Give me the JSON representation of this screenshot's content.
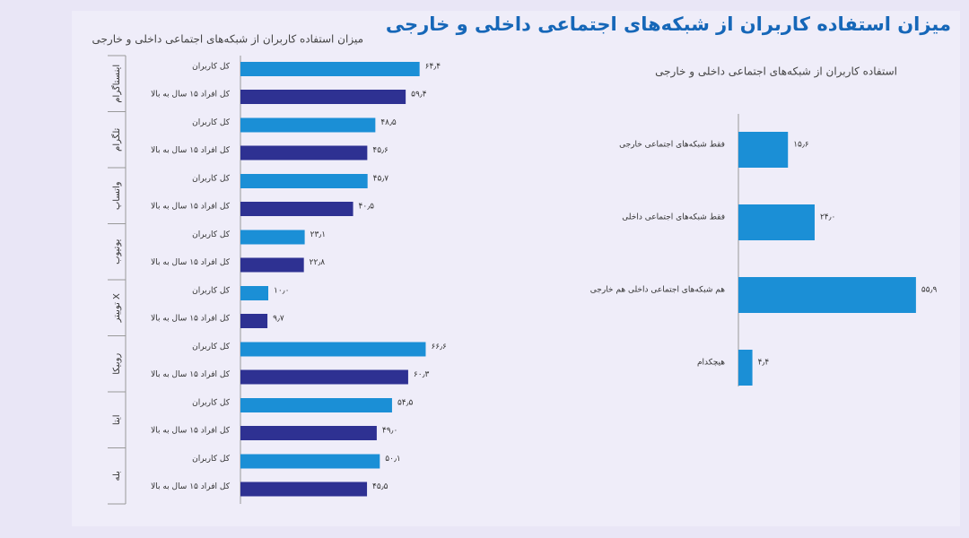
{
  "header": {
    "title": "میزان استفاده کاربران از شبکه‌های اجتماعی داخلی و خارجی"
  },
  "chart_data": [
    {
      "type": "bar",
      "orientation": "horizontal",
      "title": "میزان استفاده کاربران از شبکه‌های اجتماعی داخلی و خارجی",
      "categories": [
        "اینستاگرام",
        "تلگرام",
        "واتساپ",
        "یوتیوب",
        "توییتر X",
        "روبیکا",
        "ایتا",
        "بله"
      ],
      "series": [
        {
          "name": "کل کاربران",
          "color": "#1b8fd6",
          "values": [
            64.4,
            48.5,
            45.7,
            23.1,
            10.0,
            66.6,
            54.5,
            50.1
          ],
          "value_labels": [
            "۶۴٫۴",
            "۴۸٫۵",
            "۴۵٫۷",
            "۲۳٫۱",
            "۱۰٫۰",
            "۶۶٫۶",
            "۵۴٫۵",
            "۵۰٫۱"
          ]
        },
        {
          "name": "کل افراد ۱۵ سال به بالا",
          "color": "#2e3192",
          "values": [
            59.4,
            45.6,
            40.5,
            22.8,
            9.7,
            60.3,
            49.0,
            45.5
          ],
          "value_labels": [
            "۵۹٫۴",
            "۴۵٫۶",
            "۴۰٫۵",
            "۲۲٫۸",
            "۹٫۷",
            "۶۰٫۳",
            "۴۹٫۰",
            "۴۵٫۵"
          ]
        }
      ]
    },
    {
      "type": "bar",
      "orientation": "horizontal",
      "title": "استفاده کاربران از شبکه‌های اجتماعی داخلی و خارجی",
      "categories": [
        "فقط شبکه‌های اجتماعی خارجی",
        "فقط شبکه‌های اجتماعی داخلی",
        "هم شبکه‌های اجتماعی داخلی هم خارجی",
        "هیچکدام"
      ],
      "values": [
        15.6,
        24.0,
        55.9,
        4.4
      ],
      "value_labels": [
        "۱۵٫۶",
        "۲۴٫۰",
        "۵۵٫۹",
        "۴٫۴"
      ],
      "color": "#1b8fd6"
    }
  ]
}
